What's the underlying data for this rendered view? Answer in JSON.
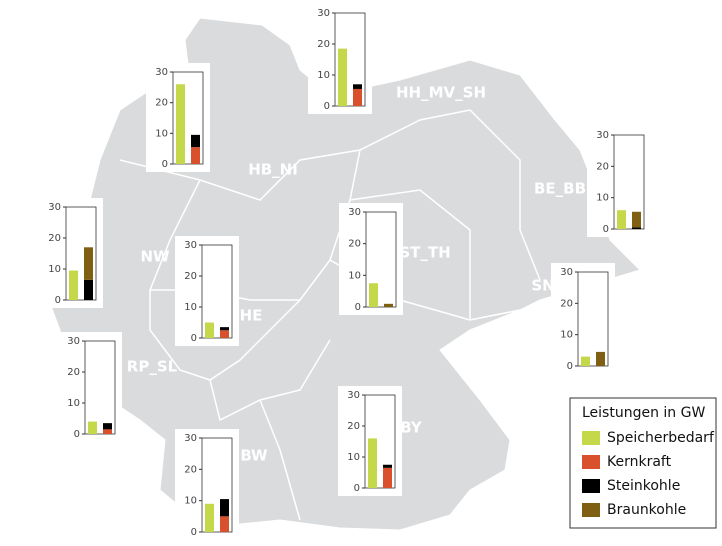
{
  "legend": {
    "title": "Leistungen in GW",
    "series": [
      {
        "name": "Speicherbedarf",
        "color": "#c5d84a"
      },
      {
        "name": "Kernkraft",
        "color": "#d9512c"
      },
      {
        "name": "Steinkohle",
        "color": "#000000"
      },
      {
        "name": "Braunkohle",
        "color": "#7f5f12"
      }
    ]
  },
  "chart_data": [
    {
      "type": "bar",
      "stacked": true,
      "title": "HH_MV_SH",
      "categories": [
        null,
        null
      ],
      "ylim": [
        0,
        30
      ],
      "yticks": [
        0,
        10,
        20,
        30
      ],
      "series": [
        {
          "values": [
            18.5,
            null
          ]
        },
        {
          "values": [
            null,
            5.5
          ]
        },
        {
          "values": [
            null,
            1.5
          ]
        },
        {
          "values": [
            null,
            null
          ]
        }
      ]
    },
    {
      "type": "bar",
      "stacked": true,
      "title": "HB_NI",
      "categories": [
        null,
        null
      ],
      "ylim": [
        0,
        30
      ],
      "yticks": [
        0,
        10,
        20,
        30
      ],
      "series": [
        {
          "values": [
            26,
            null
          ]
        },
        {
          "values": [
            null,
            5.5
          ]
        },
        {
          "values": [
            null,
            4
          ]
        },
        {
          "values": [
            null,
            null
          ]
        }
      ]
    },
    {
      "type": "bar",
      "stacked": true,
      "title": "BE_BB",
      "categories": [
        null,
        null
      ],
      "ylim": [
        0,
        30
      ],
      "yticks": [
        0,
        10,
        20,
        30
      ],
      "series": [
        {
          "values": [
            6,
            null
          ]
        },
        {
          "values": [
            null,
            null
          ]
        },
        {
          "values": [
            null,
            0.5
          ]
        },
        {
          "values": [
            null,
            5
          ]
        }
      ]
    },
    {
      "type": "bar",
      "stacked": true,
      "title": "NW",
      "categories": [
        null,
        null
      ],
      "ylim": [
        0,
        30
      ],
      "yticks": [
        0,
        10,
        20,
        30
      ],
      "series": [
        {
          "values": [
            9.5,
            null
          ]
        },
        {
          "values": [
            null,
            null
          ]
        },
        {
          "values": [
            null,
            6.5
          ]
        },
        {
          "values": [
            null,
            10.5
          ]
        }
      ]
    },
    {
      "type": "bar",
      "stacked": true,
      "title": "HE",
      "categories": [
        null,
        null
      ],
      "ylim": [
        0,
        30
      ],
      "yticks": [
        0,
        10,
        20,
        30
      ],
      "series": [
        {
          "values": [
            5,
            null
          ]
        },
        {
          "values": [
            null,
            2.5
          ]
        },
        {
          "values": [
            null,
            1
          ]
        },
        {
          "values": [
            null,
            null
          ]
        }
      ]
    },
    {
      "type": "bar",
      "stacked": true,
      "title": "ST_TH",
      "categories": [
        null,
        null
      ],
      "ylim": [
        0,
        30
      ],
      "yticks": [
        0,
        10,
        20,
        30
      ],
      "series": [
        {
          "values": [
            7.5,
            null
          ]
        },
        {
          "values": [
            null,
            null
          ]
        },
        {
          "values": [
            null,
            null
          ]
        },
        {
          "values": [
            null,
            1
          ]
        }
      ]
    },
    {
      "type": "bar",
      "stacked": true,
      "title": "SN",
      "categories": [
        null,
        null
      ],
      "ylim": [
        0,
        30
      ],
      "yticks": [
        0,
        10,
        20,
        30
      ],
      "series": [
        {
          "values": [
            3,
            null
          ]
        },
        {
          "values": [
            null,
            null
          ]
        },
        {
          "values": [
            null,
            null
          ]
        },
        {
          "values": [
            null,
            4.5
          ]
        }
      ]
    },
    {
      "type": "bar",
      "stacked": true,
      "title": "RP_SL",
      "categories": [
        null,
        null
      ],
      "ylim": [
        0,
        30
      ],
      "yticks": [
        0,
        10,
        20,
        30
      ],
      "series": [
        {
          "values": [
            4,
            null
          ]
        },
        {
          "values": [
            null,
            1.5
          ]
        },
        {
          "values": [
            null,
            2
          ]
        },
        {
          "values": [
            null,
            null
          ]
        }
      ]
    },
    {
      "type": "bar",
      "stacked": true,
      "title": "BY",
      "categories": [
        null,
        null
      ],
      "ylim": [
        0,
        30
      ],
      "yticks": [
        0,
        10,
        20,
        30
      ],
      "series": [
        {
          "values": [
            16,
            null
          ]
        },
        {
          "values": [
            null,
            6.5
          ]
        },
        {
          "values": [
            null,
            1
          ]
        },
        {
          "values": [
            null,
            null
          ]
        }
      ]
    },
    {
      "type": "bar",
      "stacked": true,
      "title": "BW",
      "categories": [
        null,
        null
      ],
      "ylim": [
        0,
        30
      ],
      "yticks": [
        0,
        10,
        20,
        30
      ],
      "series": [
        {
          "values": [
            9,
            null
          ]
        },
        {
          "values": [
            null,
            5
          ]
        },
        {
          "values": [
            null,
            5.5
          ]
        },
        {
          "values": [
            null,
            null
          ]
        }
      ]
    }
  ]
}
